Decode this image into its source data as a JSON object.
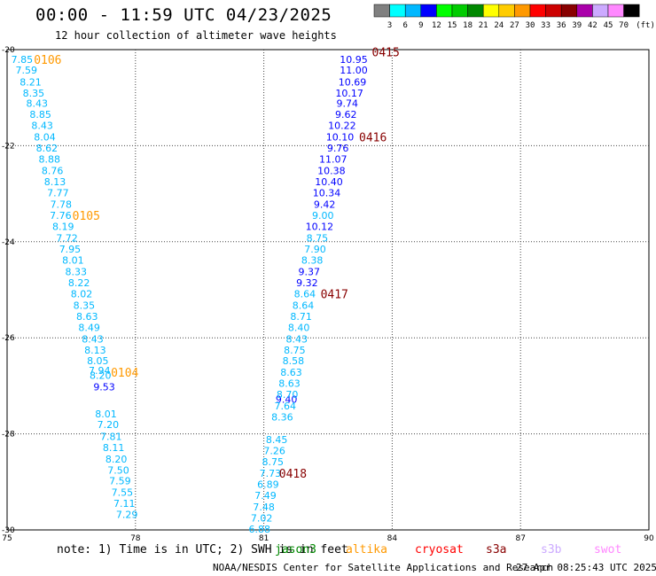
{
  "title": "00:00 - 11:59 UTC 04/23/2025",
  "subtitle": "12 hour collection of altimeter wave heights",
  "color_scale": {
    "labels": [
      "3",
      "6",
      "9",
      "12",
      "15",
      "18",
      "21",
      "24",
      "27",
      "30",
      "33",
      "36",
      "39",
      "42",
      "45",
      "70"
    ],
    "unit": "(ft)",
    "colors": [
      "#808080",
      "#00ffff",
      "#00b8ff",
      "#0000ff",
      "#00ff00",
      "#00cc00",
      "#008800",
      "#ffff00",
      "#ffcc00",
      "#ff9900",
      "#ff0000",
      "#cc0000",
      "#880000",
      "#aa00aa",
      "#ccaaff",
      "#ff88ff",
      "#000000"
    ]
  },
  "axes": {
    "lon_ticks": [
      "75",
      "78",
      "81",
      "84",
      "87",
      "90"
    ],
    "lat_ticks": [
      "-20",
      "-22",
      "-24",
      "-26",
      "-28",
      "-30"
    ],
    "lon_range": [
      75,
      90
    ],
    "lat_range": [
      -20,
      -30
    ],
    "grid": true
  },
  "chart_data": {
    "type": "scatter",
    "tracks": [
      {
        "color": "#00b8ff",
        "points": [
          {
            "lon": 75.35,
            "lat": -20.2,
            "v": "7.85"
          },
          {
            "lon": 75.45,
            "lat": -20.42,
            "v": "7.59"
          },
          {
            "lon": 75.55,
            "lat": -20.67,
            "v": "8.21"
          },
          {
            "lon": 75.62,
            "lat": -20.9,
            "v": "8.35"
          },
          {
            "lon": 75.7,
            "lat": -21.12,
            "v": "8.43"
          },
          {
            "lon": 75.78,
            "lat": -21.35,
            "v": "8.85"
          },
          {
            "lon": 75.82,
            "lat": -21.58,
            "v": "8.43"
          },
          {
            "lon": 75.88,
            "lat": -21.82,
            "v": "8.04"
          },
          {
            "lon": 75.93,
            "lat": -22.05,
            "v": "8.62"
          },
          {
            "lon": 75.99,
            "lat": -22.28,
            "v": "8.88"
          },
          {
            "lon": 76.06,
            "lat": -22.52,
            "v": "8.76"
          },
          {
            "lon": 76.12,
            "lat": -22.75,
            "v": "8.13"
          },
          {
            "lon": 76.19,
            "lat": -22.98,
            "v": "7.77"
          },
          {
            "lon": 76.26,
            "lat": -23.22,
            "v": "7.78"
          },
          {
            "lon": 76.25,
            "lat": -23.45,
            "v": "7.76"
          },
          {
            "lon": 76.31,
            "lat": -23.68,
            "v": "8.19"
          },
          {
            "lon": 76.4,
            "lat": -23.92,
            "v": "7.72"
          },
          {
            "lon": 76.47,
            "lat": -24.15,
            "v": "7.95"
          },
          {
            "lon": 76.54,
            "lat": -24.38,
            "v": "8.01"
          },
          {
            "lon": 76.61,
            "lat": -24.62,
            "v": "8.33"
          },
          {
            "lon": 76.68,
            "lat": -24.85,
            "v": "8.22"
          },
          {
            "lon": 76.74,
            "lat": -25.08,
            "v": "8.02"
          },
          {
            "lon": 76.8,
            "lat": -25.32,
            "v": "8.35"
          },
          {
            "lon": 76.87,
            "lat": -25.55,
            "v": "8.63"
          },
          {
            "lon": 76.92,
            "lat": -25.78,
            "v": "8.49"
          },
          {
            "lon": 77.0,
            "lat": -26.02,
            "v": "8.43"
          },
          {
            "lon": 77.06,
            "lat": -26.25,
            "v": "8.13"
          },
          {
            "lon": 77.12,
            "lat": -26.48,
            "v": "8.05"
          },
          {
            "lon": 77.16,
            "lat": -26.68,
            "v": "7.94"
          },
          {
            "lon": 77.18,
            "lat": -26.78,
            "v": "8.20"
          },
          {
            "lon": 77.31,
            "lat": -27.58,
            "v": "8.01"
          },
          {
            "lon": 77.36,
            "lat": -27.8,
            "v": "7.20"
          },
          {
            "lon": 77.43,
            "lat": -28.05,
            "v": "7.81"
          },
          {
            "lon": 77.49,
            "lat": -28.28,
            "v": "8.11"
          },
          {
            "lon": 77.55,
            "lat": -28.52,
            "v": "8.20"
          },
          {
            "lon": 77.6,
            "lat": -28.75,
            "v": "7.50"
          },
          {
            "lon": 77.64,
            "lat": -28.98,
            "v": "7.59"
          },
          {
            "lon": 77.69,
            "lat": -29.22,
            "v": "7.55"
          },
          {
            "lon": 77.74,
            "lat": -29.45,
            "v": "7.11"
          },
          {
            "lon": 77.8,
            "lat": -29.68,
            "v": "7.29"
          }
        ]
      },
      {
        "color": "#0000ff",
        "points": [
          {
            "lon": 77.27,
            "lat": -27.02,
            "v": "9.53"
          }
        ]
      },
      {
        "color": "#0000ff",
        "points": [
          {
            "lon": 83.1,
            "lat": -20.2,
            "v": "10.95"
          },
          {
            "lon": 83.1,
            "lat": -20.42,
            "v": "11.00"
          },
          {
            "lon": 83.07,
            "lat": -20.67,
            "v": "10.69"
          },
          {
            "lon": 83.0,
            "lat": -20.9,
            "v": "10.17"
          },
          {
            "lon": 82.95,
            "lat": -21.12,
            "v": "9.74"
          },
          {
            "lon": 82.92,
            "lat": -21.35,
            "v": "9.62"
          },
          {
            "lon": 82.83,
            "lat": -21.58,
            "v": "10.22"
          },
          {
            "lon": 82.78,
            "lat": -21.82,
            "v": "10.10"
          },
          {
            "lon": 82.73,
            "lat": -22.05,
            "v": "9.76"
          },
          {
            "lon": 82.62,
            "lat": -22.28,
            "v": "11.07"
          },
          {
            "lon": 82.58,
            "lat": -22.52,
            "v": "10.38"
          },
          {
            "lon": 82.52,
            "lat": -22.75,
            "v": "10.40"
          },
          {
            "lon": 82.47,
            "lat": -22.98,
            "v": "10.34"
          },
          {
            "lon": 82.42,
            "lat": -23.22,
            "v": "9.42"
          },
          {
            "lon": 82.3,
            "lat": -23.68,
            "v": "10.12"
          },
          {
            "lon": 82.06,
            "lat": -24.62,
            "v": "9.37"
          },
          {
            "lon": 82.01,
            "lat": -24.85,
            "v": "9.32"
          },
          {
            "lon": 81.53,
            "lat": -27.28,
            "v": "9.40"
          }
        ]
      },
      {
        "color": "#00b8ff",
        "points": [
          {
            "lon": 82.38,
            "lat": -23.45,
            "v": "9.00"
          },
          {
            "lon": 82.25,
            "lat": -23.92,
            "v": "8.75"
          },
          {
            "lon": 82.2,
            "lat": -24.15,
            "v": "7.90"
          },
          {
            "lon": 82.13,
            "lat": -24.38,
            "v": "8.38"
          },
          {
            "lon": 81.96,
            "lat": -25.08,
            "v": "8.64"
          },
          {
            "lon": 81.92,
            "lat": -25.32,
            "v": "8.64"
          },
          {
            "lon": 81.87,
            "lat": -25.55,
            "v": "8.71"
          },
          {
            "lon": 81.82,
            "lat": -25.78,
            "v": "8.40"
          },
          {
            "lon": 81.77,
            "lat": -26.02,
            "v": "8.43"
          },
          {
            "lon": 81.72,
            "lat": -26.25,
            "v": "8.75"
          },
          {
            "lon": 81.69,
            "lat": -26.48,
            "v": "8.58"
          },
          {
            "lon": 81.64,
            "lat": -26.72,
            "v": "8.63"
          },
          {
            "lon": 81.6,
            "lat": -26.95,
            "v": "8.63"
          },
          {
            "lon": 81.55,
            "lat": -27.18,
            "v": "8.70"
          },
          {
            "lon": 81.5,
            "lat": -27.42,
            "v": "7.64"
          },
          {
            "lon": 81.43,
            "lat": -27.65,
            "v": "8.36"
          },
          {
            "lon": 81.3,
            "lat": -28.12,
            "v": "8.45"
          },
          {
            "lon": 81.25,
            "lat": -28.35,
            "v": "7.26"
          },
          {
            "lon": 81.21,
            "lat": -28.58,
            "v": "8.75"
          },
          {
            "lon": 81.15,
            "lat": -28.82,
            "v": "7.73"
          },
          {
            "lon": 81.1,
            "lat": -29.05,
            "v": "6.89"
          },
          {
            "lon": 81.04,
            "lat": -29.28,
            "v": "7.49"
          },
          {
            "lon": 81.0,
            "lat": -29.52,
            "v": "7.48"
          },
          {
            "lon": 80.95,
            "lat": -29.75,
            "v": "7.02"
          },
          {
            "lon": 80.9,
            "lat": -29.98,
            "v": "6.88"
          }
        ]
      }
    ],
    "pass_labels": [
      {
        "text": "0106",
        "color": "#ff9900",
        "lon": 75.95,
        "lat": -20.2
      },
      {
        "text": "0105",
        "color": "#ff9900",
        "lon": 76.85,
        "lat": -23.45
      },
      {
        "text": "0104",
        "color": "#ff9900",
        "lon": 77.75,
        "lat": -26.72
      },
      {
        "text": "0415",
        "color": "#880000",
        "lon": 83.85,
        "lat": -20.05
      },
      {
        "text": "0416",
        "color": "#880000",
        "lon": 83.55,
        "lat": -21.82
      },
      {
        "text": "0417",
        "color": "#880000",
        "lon": 82.65,
        "lat": -25.08
      },
      {
        "text": "0418",
        "color": "#880000",
        "lon": 81.68,
        "lat": -28.82
      }
    ]
  },
  "note": "note: 1) Time is in UTC; 2) SWH is in feet",
  "satellites": [
    {
      "name": "jason3",
      "color": "#008800"
    },
    {
      "name": "altika",
      "color": "#ff9900"
    },
    {
      "name": "cryosat",
      "color": "#ff0000"
    },
    {
      "name": "s3a",
      "color": "#880000"
    },
    {
      "name": "s3b",
      "color": "#ccaaff"
    },
    {
      "name": "swot",
      "color": "#ff88ff"
    }
  ],
  "credit": "NOAA/NESDIS Center for Satellite Applications and Research",
  "timestamp": "27 Apr 08:25:43 UTC 2025"
}
